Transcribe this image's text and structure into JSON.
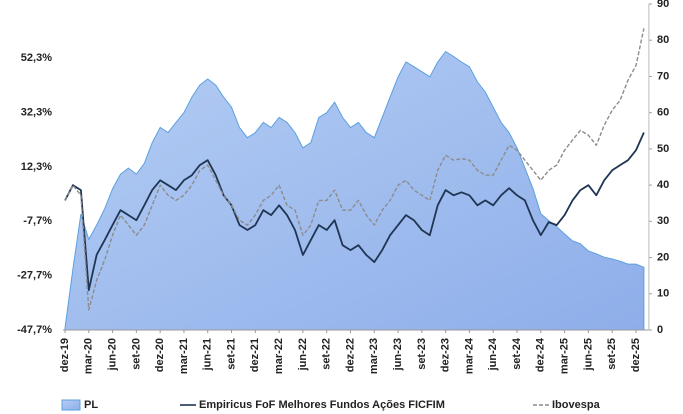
{
  "chart_data": {
    "type": "line",
    "categories": [
      "dez-19",
      null,
      null,
      "mar-20",
      null,
      null,
      "jun-20",
      null,
      null,
      "set-20",
      null,
      null,
      "dez-20",
      null,
      null,
      "mar-21",
      null,
      null,
      "jun-21",
      null,
      null,
      "set-21",
      null,
      null,
      "dez-21",
      null,
      null,
      "mar-22",
      null,
      null,
      "jun-22",
      null,
      null,
      "set-22",
      null,
      null,
      "dez-22",
      null,
      null,
      "mar-23",
      null,
      null,
      "jun-23",
      null,
      null,
      "set-23",
      null,
      null,
      "dez-23",
      null,
      null,
      "mar-24",
      null,
      null,
      "jun-24",
      null,
      null,
      "set-24",
      null,
      null,
      "dez-24",
      null,
      null,
      "mar-25",
      null,
      null,
      "jun-25",
      null,
      null,
      "set-25",
      null,
      null,
      "dez-25",
      null
    ],
    "series": [
      {
        "name": "PL",
        "type": "area",
        "axis": "y2",
        "color": "#5aa0e0",
        "fill": [
          "#b4cdf3",
          "#8eaeea"
        ],
        "values": [
          0.5,
          16.8,
          32,
          25,
          29,
          33.5,
          39,
          43,
          44.7,
          43,
          46,
          51.7,
          55.9,
          54.5,
          57.3,
          60,
          64.3,
          67.6,
          69.3,
          67.6,
          64.3,
          61.5,
          55.9,
          53.1,
          54.5,
          57.3,
          55.9,
          58.7,
          57.3,
          54.5,
          50.3,
          51.7,
          58.7,
          60,
          62.9,
          58.7,
          55.9,
          57.3,
          54.5,
          53.1,
          58.7,
          64.3,
          69.9,
          74,
          72.7,
          71.3,
          69.9,
          74,
          76.9,
          75.5,
          74,
          72.7,
          68.5,
          65.7,
          61.5,
          57.3,
          54.5,
          50.3,
          44.7,
          39.1,
          32.1,
          30.2,
          28.5,
          26.5,
          24.6,
          23.8,
          21.8,
          21,
          20.1,
          19.6,
          19,
          18.2,
          18.2,
          17.3
        ]
      },
      {
        "name": "Empiricus FoF Melhores Fundos Ações FICFIM",
        "type": "line",
        "color": "#1f3553",
        "dashed": false,
        "values": [
          0,
          5.6,
          3.8,
          -33,
          -20,
          -14.6,
          -9,
          -3.6,
          -5.4,
          -7.3,
          -1.8,
          3.8,
          7.4,
          5.6,
          3.8,
          7.4,
          9.3,
          13,
          14.8,
          9.3,
          1.9,
          -1.8,
          -9.1,
          -10.9,
          -9.1,
          -3.6,
          -5.4,
          -1.8,
          -5.4,
          -10.9,
          -20.1,
          -14.6,
          -9.1,
          -10.9,
          -7.3,
          -16.5,
          -18.3,
          -16.5,
          -20.1,
          -22.7,
          -18.3,
          -12.8,
          -9.1,
          -5.4,
          -7.3,
          -10.9,
          -12.8,
          -1.8,
          3.8,
          1.9,
          3,
          1.9,
          -1.8,
          0,
          -1.8,
          1.9,
          4.5,
          1.9,
          0,
          -7.3,
          -12.8,
          -8,
          -9.1,
          -5.4,
          0,
          3.8,
          5.6,
          1.9,
          7.4,
          11.1,
          13,
          14.8,
          18.5,
          25
        ]
      },
      {
        "name": "Ibovespa",
        "type": "line",
        "color": "#8c8c8c",
        "dashed": true,
        "values": [
          0,
          5.6,
          1.9,
          -40.3,
          -29.3,
          -21.9,
          -12.8,
          -5.4,
          -9.1,
          -12.8,
          -9.1,
          -1.8,
          5.6,
          1.9,
          0,
          1.9,
          5.6,
          11.1,
          13,
          7.4,
          1.9,
          -1.8,
          -7.3,
          -9.1,
          -5.4,
          0,
          1.9,
          5.6,
          -1.8,
          -3.6,
          -12.8,
          -9.1,
          0,
          0,
          3.8,
          -3.6,
          -3.6,
          0,
          -5.4,
          -9.1,
          -3.6,
          0,
          5.6,
          7.4,
          3.8,
          1.9,
          0,
          11.1,
          16.6,
          14.8,
          15.4,
          14.8,
          11.1,
          9.3,
          9.3,
          14.8,
          20.3,
          18.5,
          14.8,
          11.1,
          7.4,
          11.1,
          13,
          18.5,
          22.2,
          25.8,
          24,
          20.3,
          27.7,
          33.2,
          36.9,
          44.2,
          49.7,
          63.3
        ]
      }
    ],
    "ylim": [
      -47.7,
      72.3
    ],
    "yticks": [
      {
        "value": -47.7,
        "label": "-47,7%"
      },
      {
        "value": -27.7,
        "label": "-27,7%"
      },
      {
        "value": -7.7,
        "label": "-7,7%"
      },
      {
        "value": 12.3,
        "label": "12,3%"
      },
      {
        "value": 32.3,
        "label": "32,3%"
      },
      {
        "value": 52.3,
        "label": "52,3%"
      }
    ],
    "y2lim": [
      0,
      90
    ],
    "y2ticks": [
      0,
      10,
      20,
      30,
      40,
      50,
      60,
      70,
      80,
      90
    ],
    "grid": false,
    "legend": "bottom"
  }
}
